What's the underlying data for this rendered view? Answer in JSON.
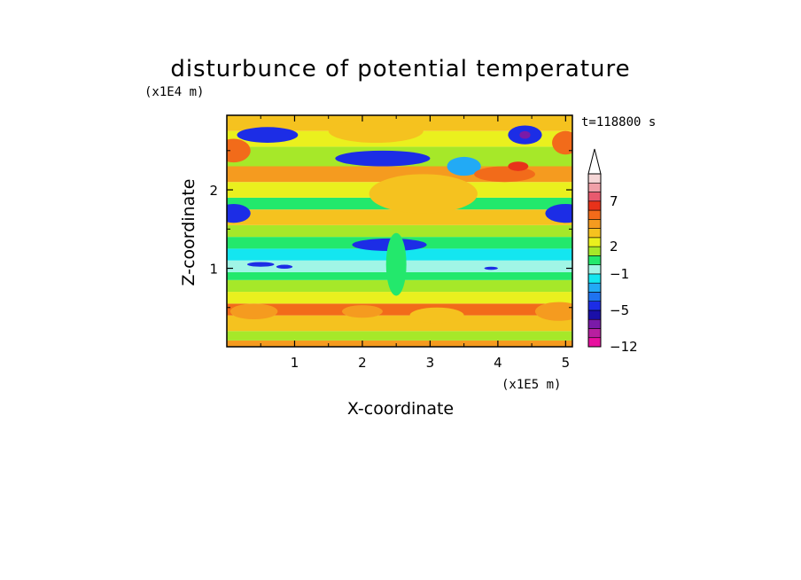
{
  "chart_data": {
    "type": "heatmap",
    "title": "disturbunce of potential temperature",
    "time_label": "t=118800 s",
    "xlabel": "X-coordinate",
    "ylabel": "Z-coordinate",
    "x_scale_label": "(x1E5 m)",
    "y_scale_label": "(x1E4 m)",
    "xlim": [
      0,
      5.1
    ],
    "ylim": [
      0,
      2.95
    ],
    "x_ticks": [
      1,
      2,
      3,
      4,
      5
    ],
    "x_tick_labels": [
      "1",
      "2",
      "3",
      "4",
      "5"
    ],
    "y_ticks": [
      1,
      2
    ],
    "y_tick_labels": [
      "1",
      "2"
    ],
    "colorbar": {
      "levels": [
        -12,
        -10,
        -8,
        -6,
        -5,
        -4,
        -3,
        -2,
        -1,
        0,
        1,
        2,
        3,
        4,
        5,
        6,
        7,
        8,
        9,
        10
      ],
      "labels": [
        {
          "level": -12,
          "text": "−12"
        },
        {
          "level": -5,
          "text": "−5"
        },
        {
          "level": -1,
          "text": "−1"
        },
        {
          "level": 2,
          "text": "2"
        },
        {
          "level": 7,
          "text": "7"
        }
      ],
      "colors": [
        "#e8109f",
        "#b81fa0",
        "#7a1aa8",
        "#1a0fa8",
        "#1c2de6",
        "#1f73f0",
        "#22aaf5",
        "#14e6f0",
        "#a0f5e6",
        "#23e86c",
        "#a6e829",
        "#eaf01e",
        "#f5c21f",
        "#f59b1f",
        "#f26b1a",
        "#e8321a",
        "#e85a6e",
        "#f0a0a8",
        "#f5d6d6"
      ],
      "extend": "max"
    },
    "bands": [
      {
        "z_top": 0.08,
        "level": 4
      },
      {
        "z_top": 0.2,
        "level": 1
      },
      {
        "z_top": 0.4,
        "level": 3
      },
      {
        "z_top": 0.55,
        "level": 5
      },
      {
        "z_top": 0.7,
        "level": 2
      },
      {
        "z_top": 0.85,
        "level": 1
      },
      {
        "z_top": 0.95,
        "level": 0
      },
      {
        "z_top": 1.1,
        "level": -1
      },
      {
        "z_top": 1.25,
        "level": -2
      },
      {
        "z_top": 1.4,
        "level": 0
      },
      {
        "z_top": 1.55,
        "level": 1
      },
      {
        "z_top": 1.75,
        "level": 3
      },
      {
        "z_top": 1.9,
        "level": 0
      },
      {
        "z_top": 2.1,
        "level": 2
      },
      {
        "z_top": 2.3,
        "level": 4
      },
      {
        "z_top": 2.55,
        "level": 1
      },
      {
        "z_top": 2.75,
        "level": 2
      },
      {
        "z_top": 2.95,
        "level": 3
      }
    ],
    "features": [
      {
        "x": 0.1,
        "z": 1.7,
        "rx": 0.25,
        "rz": 0.12,
        "level": -5
      },
      {
        "x": 5.0,
        "z": 1.7,
        "rx": 0.3,
        "rz": 0.12,
        "level": -5
      },
      {
        "x": 0.6,
        "z": 2.7,
        "rx": 0.45,
        "rz": 0.1,
        "level": -5
      },
      {
        "x": 2.3,
        "z": 2.4,
        "rx": 0.7,
        "rz": 0.1,
        "level": -5
      },
      {
        "x": 3.5,
        "z": 2.3,
        "rx": 0.25,
        "rz": 0.12,
        "level": -3
      },
      {
        "x": 2.4,
        "z": 1.3,
        "rx": 0.55,
        "rz": 0.08,
        "level": -5
      },
      {
        "x": 4.4,
        "z": 2.7,
        "rx": 0.25,
        "rz": 0.12,
        "level": -5
      },
      {
        "x": 4.4,
        "z": 2.7,
        "rx": 0.08,
        "rz": 0.05,
        "level": -8
      },
      {
        "x": 4.1,
        "z": 2.2,
        "rx": 0.45,
        "rz": 0.1,
        "level": 5
      },
      {
        "x": 4.3,
        "z": 2.3,
        "rx": 0.15,
        "rz": 0.06,
        "level": 6
      },
      {
        "x": 0.1,
        "z": 2.5,
        "rx": 0.25,
        "rz": 0.15,
        "level": 5
      },
      {
        "x": 5.0,
        "z": 2.6,
        "rx": 0.2,
        "rz": 0.15,
        "level": 5
      },
      {
        "x": 4.9,
        "z": 0.45,
        "rx": 0.35,
        "rz": 0.12,
        "level": 4
      },
      {
        "x": 0.4,
        "z": 0.45,
        "rx": 0.35,
        "rz": 0.1,
        "level": 4
      },
      {
        "x": 2.0,
        "z": 0.45,
        "rx": 0.3,
        "rz": 0.08,
        "level": 4
      },
      {
        "x": 3.1,
        "z": 0.4,
        "rx": 0.4,
        "rz": 0.1,
        "level": 3
      },
      {
        "x": 2.5,
        "z": 1.05,
        "rx": 0.15,
        "rz": 0.4,
        "level": 0
      },
      {
        "x": 2.9,
        "z": 1.95,
        "rx": 0.8,
        "rz": 0.25,
        "level": 3
      },
      {
        "x": 2.2,
        "z": 2.75,
        "rx": 0.7,
        "rz": 0.15,
        "level": 3
      },
      {
        "x": 0.5,
        "z": 1.05,
        "rx": 0.2,
        "rz": 0.03,
        "level": -5
      },
      {
        "x": 0.85,
        "z": 1.02,
        "rx": 0.12,
        "rz": 0.025,
        "level": -5
      },
      {
        "x": 3.9,
        "z": 1.0,
        "rx": 0.1,
        "rz": 0.02,
        "level": -5
      }
    ]
  }
}
